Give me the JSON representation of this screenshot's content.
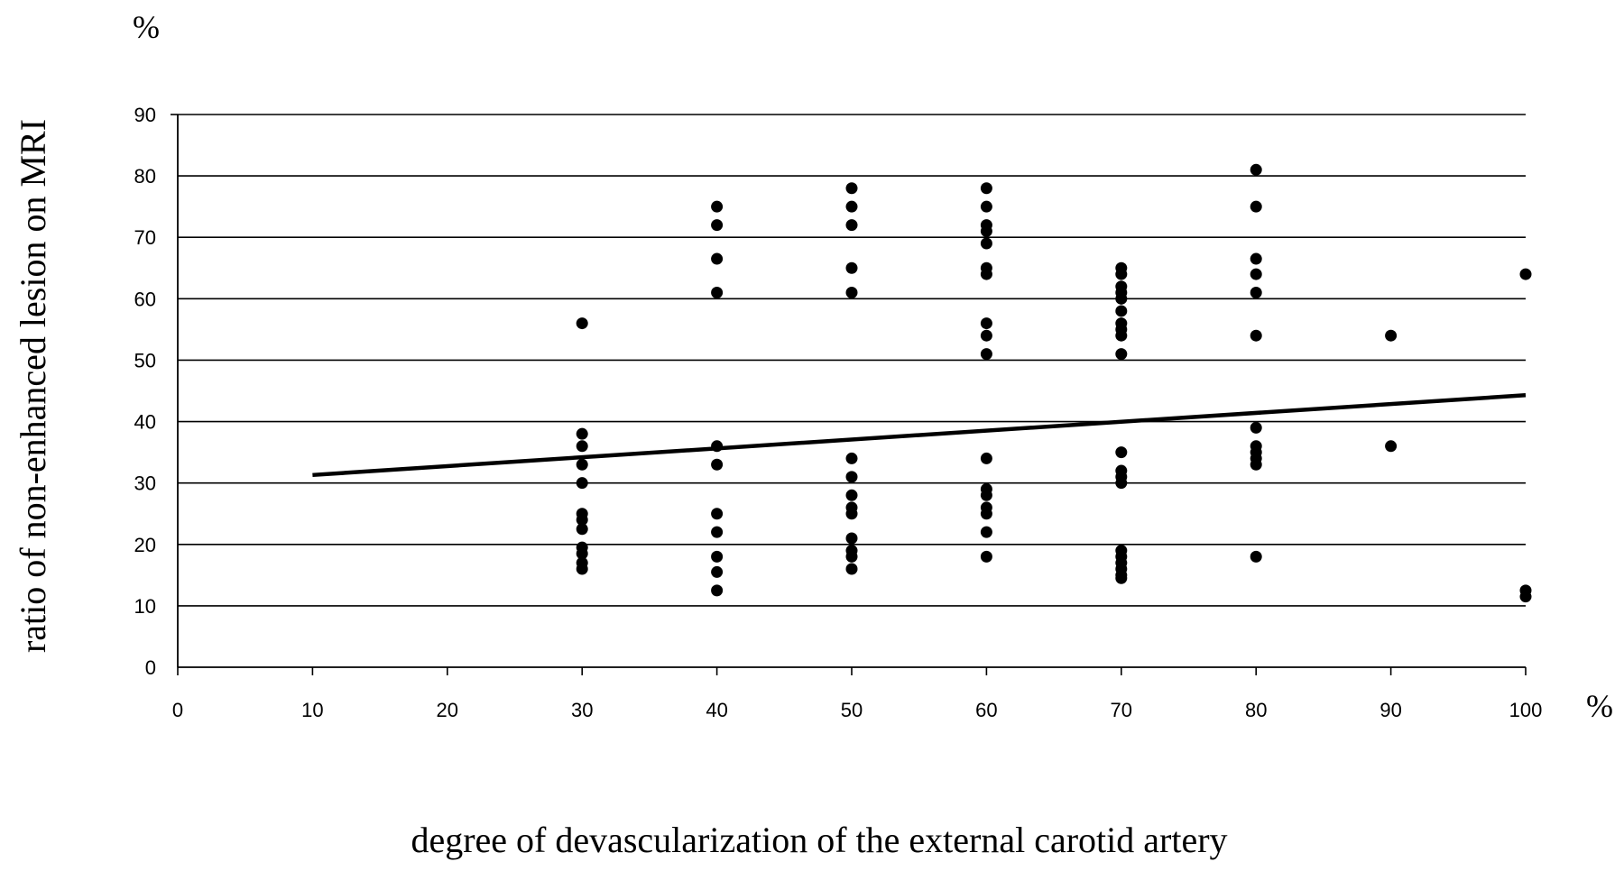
{
  "chart_data": {
    "type": "scatter",
    "xlabel": "degree of devascularization of the external carotid artery",
    "ylabel": "ratio of non-enhanced lesion on MRI",
    "x_unit": "%",
    "y_unit": "%",
    "xlim": [
      0,
      100
    ],
    "ylim": [
      0,
      90
    ],
    "x_ticks": [
      "0",
      "10",
      "20",
      "30",
      "40",
      "50",
      "60",
      "70",
      "80",
      "90",
      "100"
    ],
    "y_ticks": [
      "0",
      "10",
      "20",
      "30",
      "40",
      "50",
      "60",
      "70",
      "80",
      "90"
    ],
    "grid": "horizontal",
    "legend": "none",
    "points": [
      [
        30,
        56
      ],
      [
        30,
        38
      ],
      [
        30,
        36
      ],
      [
        30,
        33
      ],
      [
        30,
        30
      ],
      [
        30,
        25
      ],
      [
        30,
        24
      ],
      [
        30,
        22.5
      ],
      [
        30,
        19.5
      ],
      [
        30,
        18.5
      ],
      [
        30,
        17
      ],
      [
        30,
        16
      ],
      [
        40,
        75
      ],
      [
        40,
        72
      ],
      [
        40,
        66.5
      ],
      [
        40,
        61
      ],
      [
        40,
        36
      ],
      [
        40,
        33
      ],
      [
        40,
        25
      ],
      [
        40,
        22
      ],
      [
        40,
        18
      ],
      [
        40,
        15.5
      ],
      [
        40,
        12.5
      ],
      [
        50,
        78
      ],
      [
        50,
        75
      ],
      [
        50,
        72
      ],
      [
        50,
        65
      ],
      [
        50,
        61
      ],
      [
        50,
        34
      ],
      [
        50,
        31
      ],
      [
        50,
        28
      ],
      [
        50,
        26
      ],
      [
        50,
        25
      ],
      [
        50,
        21
      ],
      [
        50,
        19
      ],
      [
        50,
        18
      ],
      [
        50,
        16
      ],
      [
        60,
        78
      ],
      [
        60,
        75
      ],
      [
        60,
        72
      ],
      [
        60,
        71
      ],
      [
        60,
        69
      ],
      [
        60,
        65
      ],
      [
        60,
        64
      ],
      [
        60,
        56
      ],
      [
        60,
        54
      ],
      [
        60,
        51
      ],
      [
        60,
        34
      ],
      [
        60,
        29
      ],
      [
        60,
        28
      ],
      [
        60,
        26
      ],
      [
        60,
        25
      ],
      [
        60,
        22
      ],
      [
        60,
        18
      ],
      [
        70,
        65
      ],
      [
        70,
        64
      ],
      [
        70,
        62
      ],
      [
        70,
        61
      ],
      [
        70,
        60
      ],
      [
        70,
        58
      ],
      [
        70,
        56
      ],
      [
        70,
        55
      ],
      [
        70,
        54
      ],
      [
        70,
        51
      ],
      [
        70,
        35
      ],
      [
        70,
        32
      ],
      [
        70,
        31
      ],
      [
        70,
        30
      ],
      [
        70,
        19
      ],
      [
        70,
        18
      ],
      [
        70,
        17
      ],
      [
        70,
        16
      ],
      [
        70,
        15
      ],
      [
        70,
        14.5
      ],
      [
        80,
        81
      ],
      [
        80,
        75
      ],
      [
        80,
        66.5
      ],
      [
        80,
        64
      ],
      [
        80,
        61
      ],
      [
        80,
        54
      ],
      [
        80,
        39
      ],
      [
        80,
        36
      ],
      [
        80,
        35
      ],
      [
        80,
        34
      ],
      [
        80,
        33
      ],
      [
        80,
        18
      ],
      [
        90,
        54
      ],
      [
        90,
        36
      ],
      [
        100,
        64
      ],
      [
        100,
        12.5
      ],
      [
        100,
        11.5
      ]
    ],
    "trendline": {
      "x": [
        10,
        100
      ],
      "y": [
        31.3,
        44.3
      ]
    }
  }
}
